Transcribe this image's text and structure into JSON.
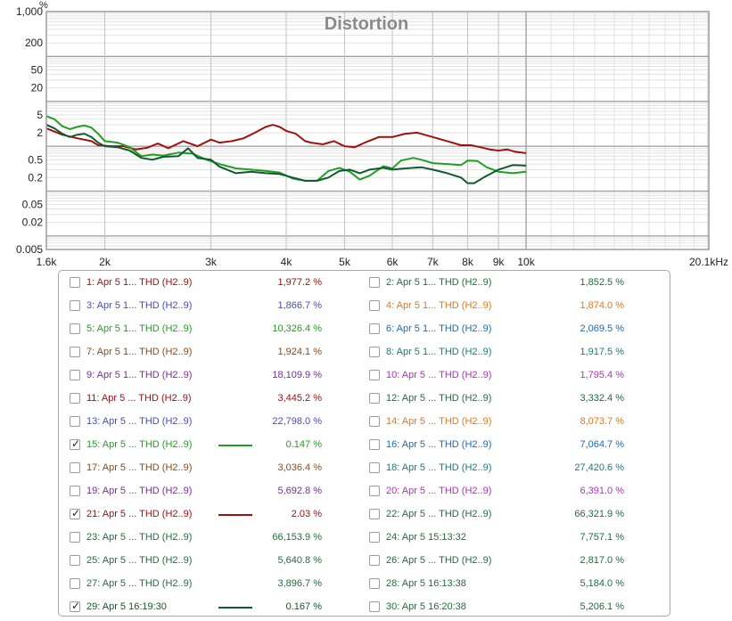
{
  "chart_data": {
    "type": "line",
    "title": "Distortion",
    "y_unit": "%",
    "x_unit": "kHz",
    "x_scale": "log",
    "y_scale": "log",
    "xlim": [
      1600,
      20100
    ],
    "ylim": [
      0.005,
      1000
    ],
    "grid": true,
    "x_ticks": [
      {
        "v": 1600,
        "label": "1.6k"
      },
      {
        "v": 2000,
        "label": "2k"
      },
      {
        "v": 3000,
        "label": "3k"
      },
      {
        "v": 4000,
        "label": "4k"
      },
      {
        "v": 5000,
        "label": "5k"
      },
      {
        "v": 6000,
        "label": "6k"
      },
      {
        "v": 7000,
        "label": "7k"
      },
      {
        "v": 8000,
        "label": "8k"
      },
      {
        "v": 9000,
        "label": "9k"
      },
      {
        "v": 10000,
        "label": "10k"
      },
      {
        "v": 20100,
        "label": "20.1kHz"
      }
    ],
    "y_ticks": [
      {
        "v": 1000,
        "label": "1,000"
      },
      {
        "v": 200,
        "label": "200"
      },
      {
        "v": 50,
        "label": "50"
      },
      {
        "v": 20,
        "label": "20"
      },
      {
        "v": 5,
        "label": "5"
      },
      {
        "v": 2,
        "label": "2"
      },
      {
        "v": 0.5,
        "label": "0.5"
      },
      {
        "v": 0.2,
        "label": "0.2"
      },
      {
        "v": 0.05,
        "label": "0.05"
      },
      {
        "v": 0.02,
        "label": "0.02"
      },
      {
        "v": 0.005,
        "label": "0.005"
      }
    ],
    "series": [
      {
        "name": "21: Apr 5 ... THD (H2..9)",
        "color": "#a01010",
        "points": [
          [
            1600,
            2.5
          ],
          [
            1700,
            1.8
          ],
          [
            1800,
            1.5
          ],
          [
            1900,
            1.3
          ],
          [
            1950,
            1.05
          ],
          [
            2050,
            1.0
          ],
          [
            2150,
            1.0
          ],
          [
            2250,
            0.85
          ],
          [
            2350,
            0.92
          ],
          [
            2450,
            1.15
          ],
          [
            2550,
            0.9
          ],
          [
            2700,
            1.3
          ],
          [
            2850,
            1.0
          ],
          [
            3000,
            1.4
          ],
          [
            3100,
            1.2
          ],
          [
            3250,
            1.3
          ],
          [
            3400,
            1.5
          ],
          [
            3550,
            2.0
          ],
          [
            3700,
            2.7
          ],
          [
            3800,
            3.0
          ],
          [
            3900,
            2.7
          ],
          [
            4000,
            2.2
          ],
          [
            4150,
            1.9
          ],
          [
            4300,
            1.3
          ],
          [
            4400,
            1.2
          ],
          [
            4600,
            1.1
          ],
          [
            4800,
            1.3
          ],
          [
            5000,
            1.0
          ],
          [
            5200,
            0.95
          ],
          [
            5400,
            1.2
          ],
          [
            5700,
            1.6
          ],
          [
            6000,
            1.6
          ],
          [
            6300,
            1.9
          ],
          [
            6600,
            2.0
          ],
          [
            7000,
            1.6
          ],
          [
            7400,
            1.3
          ],
          [
            7800,
            1.05
          ],
          [
            8100,
            1.05
          ],
          [
            8400,
            0.95
          ],
          [
            8700,
            0.85
          ],
          [
            9000,
            0.8
          ],
          [
            9300,
            0.85
          ],
          [
            9600,
            0.75
          ],
          [
            10000,
            0.7
          ]
        ]
      },
      {
        "name": "15: Apr 5 ... THD (H2..9)",
        "color": "#20a020",
        "points": [
          [
            1600,
            4.7
          ],
          [
            1650,
            4.0
          ],
          [
            1700,
            2.8
          ],
          [
            1750,
            2.4
          ],
          [
            1800,
            2.7
          ],
          [
            1850,
            2.9
          ],
          [
            1900,
            2.6
          ],
          [
            1950,
            1.9
          ],
          [
            2000,
            1.3
          ],
          [
            2100,
            1.2
          ],
          [
            2200,
            0.95
          ],
          [
            2300,
            0.6
          ],
          [
            2400,
            0.65
          ],
          [
            2500,
            0.62
          ],
          [
            2650,
            0.72
          ],
          [
            2800,
            0.68
          ],
          [
            2950,
            0.5
          ],
          [
            3100,
            0.4
          ],
          [
            3300,
            0.32
          ],
          [
            3500,
            0.3
          ],
          [
            3700,
            0.28
          ],
          [
            3900,
            0.26
          ],
          [
            4100,
            0.19
          ],
          [
            4300,
            0.17
          ],
          [
            4500,
            0.17
          ],
          [
            4700,
            0.28
          ],
          [
            4900,
            0.33
          ],
          [
            5100,
            0.27
          ],
          [
            5300,
            0.18
          ],
          [
            5500,
            0.22
          ],
          [
            5800,
            0.36
          ],
          [
            6000,
            0.32
          ],
          [
            6200,
            0.48
          ],
          [
            6500,
            0.55
          ],
          [
            6700,
            0.5
          ],
          [
            7000,
            0.42
          ],
          [
            7400,
            0.4
          ],
          [
            7800,
            0.38
          ],
          [
            8000,
            0.48
          ],
          [
            8300,
            0.47
          ],
          [
            8600,
            0.34
          ],
          [
            9000,
            0.27
          ],
          [
            9500,
            0.25
          ],
          [
            10000,
            0.27
          ]
        ]
      },
      {
        "name": "29: Apr 5 16:19:30",
        "color": "#0f5a30",
        "points": [
          [
            1600,
            3.0
          ],
          [
            1650,
            2.5
          ],
          [
            1700,
            1.9
          ],
          [
            1750,
            1.6
          ],
          [
            1800,
            1.8
          ],
          [
            1850,
            1.9
          ],
          [
            1900,
            1.6
          ],
          [
            1950,
            1.2
          ],
          [
            2000,
            1.0
          ],
          [
            2100,
            0.95
          ],
          [
            2200,
            0.8
          ],
          [
            2300,
            0.55
          ],
          [
            2400,
            0.5
          ],
          [
            2500,
            0.58
          ],
          [
            2650,
            0.6
          ],
          [
            2750,
            0.9
          ],
          [
            2850,
            0.55
          ],
          [
            3000,
            0.5
          ],
          [
            3100,
            0.35
          ],
          [
            3300,
            0.25
          ],
          [
            3500,
            0.27
          ],
          [
            3700,
            0.25
          ],
          [
            3900,
            0.24
          ],
          [
            4100,
            0.2
          ],
          [
            4300,
            0.17
          ],
          [
            4500,
            0.17
          ],
          [
            4700,
            0.2
          ],
          [
            4900,
            0.28
          ],
          [
            5100,
            0.3
          ],
          [
            5300,
            0.25
          ],
          [
            5500,
            0.3
          ],
          [
            5800,
            0.33
          ],
          [
            6000,
            0.3
          ],
          [
            6300,
            0.32
          ],
          [
            6700,
            0.34
          ],
          [
            7000,
            0.3
          ],
          [
            7400,
            0.25
          ],
          [
            7800,
            0.2
          ],
          [
            8000,
            0.15
          ],
          [
            8200,
            0.15
          ],
          [
            8500,
            0.2
          ],
          [
            9000,
            0.3
          ],
          [
            9500,
            0.38
          ],
          [
            10000,
            0.37
          ]
        ]
      }
    ]
  },
  "legend": [
    {
      "label": "1: Apr 5 1... THD (H2..9)",
      "value": "1,977.2 %",
      "color": "#a01010",
      "checked": false,
      "swatch": false
    },
    {
      "label": "2: Apr 5 1... THD (H2..9)",
      "value": "1,852.5 %",
      "color": "#1e6e3c",
      "checked": false,
      "swatch": false
    },
    {
      "label": "3: Apr 5 1... THD (H2..9)",
      "value": "1,866.7 %",
      "color": "#4848c8",
      "checked": false,
      "swatch": false
    },
    {
      "label": "4: Apr 5 1... THD (H2..9)",
      "value": "1,874.0 %",
      "color": "#e07818",
      "checked": false,
      "swatch": false
    },
    {
      "label": "5: Apr 5 1... THD (H2..9)",
      "value": "10,326.4 %",
      "color": "#20a020",
      "checked": false,
      "swatch": false
    },
    {
      "label": "6: Apr 5 1... THD (H2..9)",
      "value": "2,069.5 %",
      "color": "#1a6ab8",
      "checked": false,
      "swatch": false
    },
    {
      "label": "7: Apr 5 1... THD (H2..9)",
      "value": "1,924.1 %",
      "color": "#8b4a1a",
      "checked": false,
      "swatch": false
    },
    {
      "label": "8: Apr 5 1... THD (H2..9)",
      "value": "1,917.5 %",
      "color": "#1a7a7a",
      "checked": false,
      "swatch": false
    },
    {
      "label": "9: Apr 5 1... THD (H2..9)",
      "value": "18,109.9 %",
      "color": "#7a2aa0",
      "checked": false,
      "swatch": false
    },
    {
      "label": "10: Apr 5 ... THD (H2..9)",
      "value": "1,795.4 %",
      "color": "#b030c0",
      "checked": false,
      "swatch": false
    },
    {
      "label": "11: Apr 5 ... THD (H2..9)",
      "value": "3,445.2 %",
      "color": "#a01010",
      "checked": false,
      "swatch": false
    },
    {
      "label": "12: Apr 5 ... THD (H2..9)",
      "value": "3,332.4 %",
      "color": "#1e6e3c",
      "checked": false,
      "swatch": false
    },
    {
      "label": "13: Apr 5 ... THD (H2..9)",
      "value": "22,798.0 %",
      "color": "#4848c8",
      "checked": false,
      "swatch": false
    },
    {
      "label": "14: Apr 5 ... THD (H2..9)",
      "value": "8,073.7 %",
      "color": "#e07818",
      "checked": false,
      "swatch": false
    },
    {
      "label": "15: Apr 5 ... THD (H2..9)",
      "value": "0.147 %",
      "color": "#20a020",
      "checked": true,
      "swatch": true
    },
    {
      "label": "16: Apr 5 ... THD (H2..9)",
      "value": "7,064.7 %",
      "color": "#1a6ab8",
      "checked": false,
      "swatch": false
    },
    {
      "label": "17: Apr 5 ... THD (H2..9)",
      "value": "3,036.4 %",
      "color": "#8b4a1a",
      "checked": false,
      "swatch": false
    },
    {
      "label": "18: Apr 5 ... THD (H2..9)",
      "value": "27,420.6 %",
      "color": "#1a7a7a",
      "checked": false,
      "swatch": false
    },
    {
      "label": "19: Apr 5 ... THD (H2..9)",
      "value": "5,692.8 %",
      "color": "#7a2aa0",
      "checked": false,
      "swatch": false
    },
    {
      "label": "20: Apr 5 ... THD (H2..9)",
      "value": "6,391.0 %",
      "color": "#b030c0",
      "checked": false,
      "swatch": false
    },
    {
      "label": "21: Apr 5 ... THD (H2..9)",
      "value": "2.03 %",
      "color": "#a01010",
      "checked": true,
      "swatch": true
    },
    {
      "label": "22: Apr 5 ... THD (H2..9)",
      "value": "66,321.9 %",
      "color": "#1e6e3c",
      "checked": false,
      "swatch": false
    },
    {
      "label": "23: Apr 5 ... THD (H2..9)",
      "value": "66,153.9 %",
      "color": "#1e6e3c",
      "checked": false,
      "swatch": false
    },
    {
      "label": "24: Apr 5 15:13:32",
      "value": "7,757.1 %",
      "color": "#1e6e3c",
      "checked": false,
      "swatch": false
    },
    {
      "label": "25: Apr 5 ... THD (H2..9)",
      "value": "5,640.8 %",
      "color": "#1e6e3c",
      "checked": false,
      "swatch": false
    },
    {
      "label": "26: Apr 5 ... THD (H2..9)",
      "value": "2,817.0 %",
      "color": "#1e6e3c",
      "checked": false,
      "swatch": false
    },
    {
      "label": "27: Apr 5 ... THD (H2..9)",
      "value": "3,896.7 %",
      "color": "#1e6e3c",
      "checked": false,
      "swatch": false
    },
    {
      "label": "28: Apr 5 16:13:38",
      "value": "5,184.0 %",
      "color": "#1e6e3c",
      "checked": false,
      "swatch": false
    },
    {
      "label": "29: Apr 5 16:19:30",
      "value": "0.167 %",
      "color": "#0f5a30",
      "checked": true,
      "swatch": true
    },
    {
      "label": "30: Apr 5 16:20:38",
      "value": "5,206.1 %",
      "color": "#1e6e3c",
      "checked": false,
      "swatch": false
    }
  ]
}
